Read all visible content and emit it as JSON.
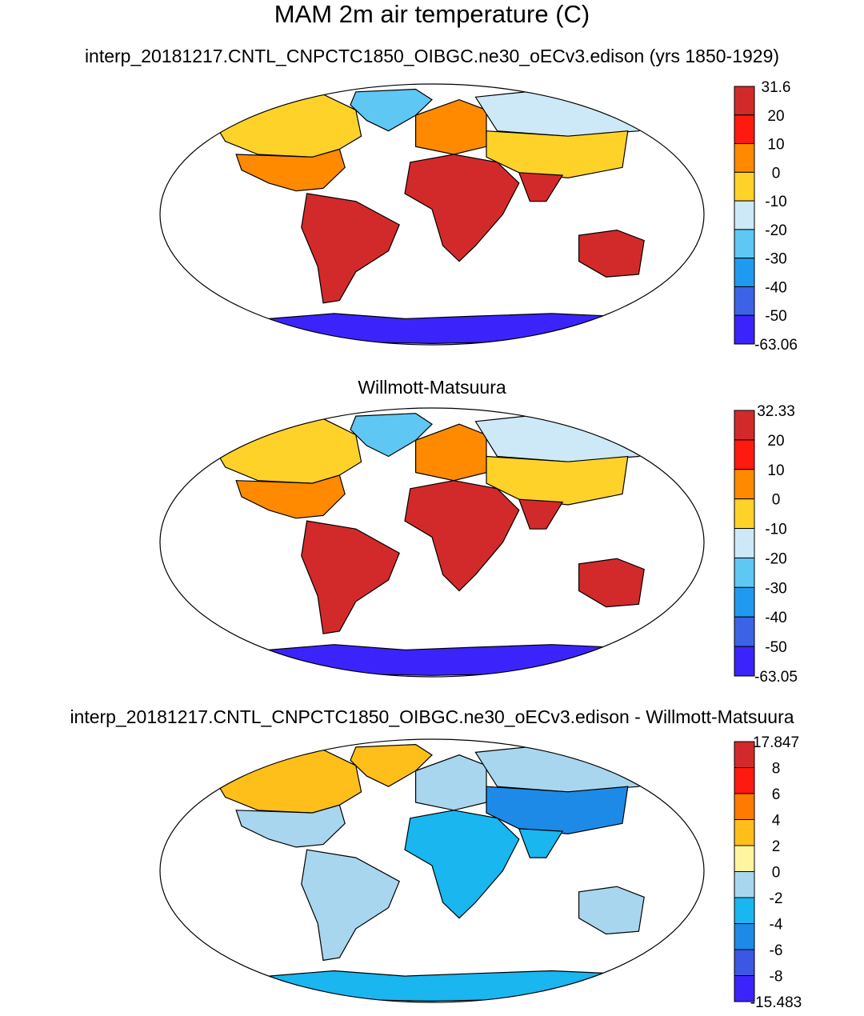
{
  "title": "MAM 2m air temperature (C)",
  "chart_data": [
    {
      "type": "heatmap",
      "subtitle": "interp_20181217.CNTL_CNPCTC1850_OIBGC.ne30_oECv3.edison (yrs 1850-1929)",
      "projection": "Robinson world map",
      "colorbar": {
        "labels": [
          "31.6",
          "20",
          "10",
          "0",
          "-10",
          "-20",
          "-30",
          "-40",
          "-50",
          "-63.06"
        ],
        "colors": [
          "#d22a2a",
          "#ff1a0f",
          "#ff8a00",
          "#ffd22a",
          "#cde9f7",
          "#5ec7f3",
          "#1f9af0",
          "#3c63e6",
          "#3b24fb"
        ]
      },
      "regions": [
        {
          "name": "Antarctica",
          "bin": 8
        },
        {
          "name": "Greenland",
          "bin": 5
        },
        {
          "name": "Canada",
          "bin": 3
        },
        {
          "name": "United States",
          "bin": 2
        },
        {
          "name": "South America",
          "bin": 0
        },
        {
          "name": "Africa",
          "bin": 0
        },
        {
          "name": "Europe",
          "bin": 2
        },
        {
          "name": "Siberia",
          "bin": 4
        },
        {
          "name": "Central Asia",
          "bin": 3
        },
        {
          "name": "India",
          "bin": 0
        },
        {
          "name": "Australia",
          "bin": 0
        }
      ]
    },
    {
      "type": "heatmap",
      "subtitle": "Willmott-Matsuura",
      "projection": "Robinson world map",
      "colorbar": {
        "labels": [
          "32.33",
          "20",
          "10",
          "0",
          "-10",
          "-20",
          "-30",
          "-40",
          "-50",
          "-63.05"
        ],
        "colors": [
          "#d22a2a",
          "#ff1a0f",
          "#ff8a00",
          "#ffd22a",
          "#cde9f7",
          "#5ec7f3",
          "#1f9af0",
          "#3c63e6",
          "#3b24fb"
        ]
      },
      "regions": [
        {
          "name": "Antarctica",
          "bin": 8
        },
        {
          "name": "Greenland",
          "bin": 5
        },
        {
          "name": "Canada",
          "bin": 3
        },
        {
          "name": "United States",
          "bin": 2
        },
        {
          "name": "South America",
          "bin": 0
        },
        {
          "name": "Africa",
          "bin": 0
        },
        {
          "name": "Europe",
          "bin": 2
        },
        {
          "name": "Siberia",
          "bin": 4
        },
        {
          "name": "Central Asia",
          "bin": 3
        },
        {
          "name": "India",
          "bin": 0
        },
        {
          "name": "Australia",
          "bin": 0
        }
      ]
    },
    {
      "type": "heatmap",
      "subtitle": "interp_20181217.CNTL_CNPCTC1850_OIBGC.ne30_oECv3.edison - Willmott-Matsuura",
      "projection": "Robinson world map",
      "colorbar": {
        "labels": [
          "17.847",
          "8",
          "6",
          "4",
          "2",
          "0",
          "-2",
          "-4",
          "-6",
          "-8",
          "-15.483"
        ],
        "colors": [
          "#d22a2a",
          "#ff1a0f",
          "#ff7a00",
          "#ffbf1a",
          "#fff59e",
          "#a8d6ee",
          "#19b6f0",
          "#1d8ae8",
          "#3b57e3",
          "#3b24fb"
        ]
      },
      "regions": [
        {
          "name": "Antarctica",
          "bin": 6
        },
        {
          "name": "Greenland",
          "bin": 3
        },
        {
          "name": "Canada",
          "bin": 3
        },
        {
          "name": "United States",
          "bin": 5
        },
        {
          "name": "South America",
          "bin": 5
        },
        {
          "name": "Africa",
          "bin": 6
        },
        {
          "name": "Europe",
          "bin": 5
        },
        {
          "name": "Siberia",
          "bin": 5
        },
        {
          "name": "Central Asia",
          "bin": 7
        },
        {
          "name": "India",
          "bin": 6
        },
        {
          "name": "Australia",
          "bin": 5
        }
      ]
    }
  ]
}
